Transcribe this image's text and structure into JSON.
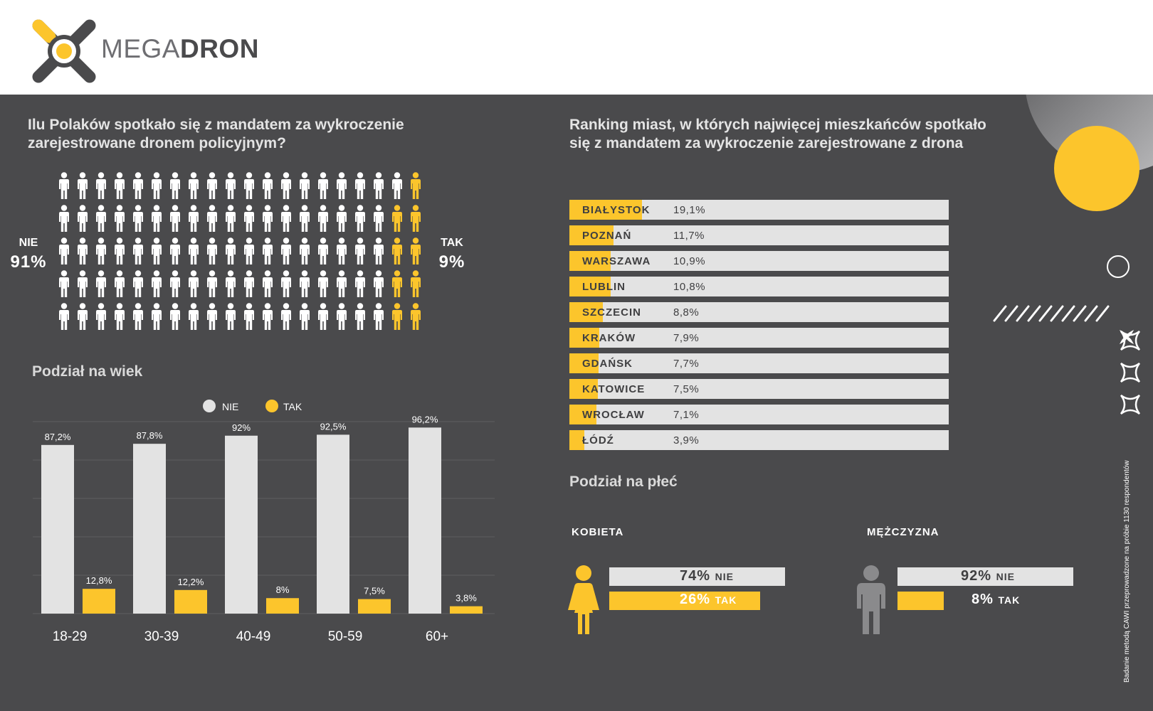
{
  "brand": {
    "name_light": "MEGA",
    "name_bold": "DRON"
  },
  "colors": {
    "background": "#4a4a4c",
    "accent": "#fcc52c",
    "neutral": "#e3e3e3"
  },
  "icons": [
    "megadron-logo-icon",
    "person-icon",
    "woman-icon",
    "man-icon",
    "circle-icon",
    "x-icon"
  ],
  "overall": {
    "title_line1": "Ilu Polaków spotkało się z mandatem za wykroczenie",
    "title_line2": "zarejestrowane dronem policyjnym?",
    "nie_label": "NIE",
    "nie_pct": "91%",
    "tak_label": "TAK",
    "tak_pct": "9%"
  },
  "ranking": {
    "title_line1": "Ranking miast, w których najwięcej mieszkańców spotkało",
    "title_line2": "się z mandatem za wykroczenie zarejestrowane z drona"
  },
  "age": {
    "title": "Podział na wiek",
    "legend_nie": "NIE",
    "legend_tak": "TAK"
  },
  "gender": {
    "title": "Podział na płeć",
    "kobieta": {
      "label": "KOBIETA",
      "nie_pct": "74%",
      "nie_label": "NIE",
      "tak_pct": "26%",
      "tak_label": "TAK"
    },
    "mezczyzna": {
      "label": "MĘŻCZYZNA",
      "nie_pct": "92%",
      "nie_label": "NIE",
      "tak_pct": "8%",
      "tak_label": "TAK"
    }
  },
  "footnote": "Badanie metodą CAWI przeprowadzone na próbie 1130 respondentów",
  "chart_data": [
    {
      "type": "pictogram",
      "title": "Ilu Polaków spotkało się z mandatem za wykroczenie zarejestrowane dronem policyjnym?",
      "categories": [
        "NIE",
        "TAK"
      ],
      "values": [
        91,
        9
      ]
    },
    {
      "type": "bar",
      "title": "Podział na wiek",
      "categories": [
        "18-29",
        "30-39",
        "40-49",
        "50-59",
        "60+"
      ],
      "series": [
        {
          "name": "NIE",
          "values": [
            87.2,
            87.8,
            92,
            92.5,
            96.2
          ],
          "labels": [
            "87,2%",
            "87,8%",
            "92%",
            "92,5%",
            "96,2%"
          ],
          "color": "#e3e3e3"
        },
        {
          "name": "TAK",
          "values": [
            12.8,
            12.2,
            8,
            7.5,
            3.8
          ],
          "labels": [
            "12,8%",
            "12,2%",
            "8%",
            "7,5%",
            "3,8%"
          ],
          "color": "#fcc52c"
        }
      ],
      "ylim": [
        0,
        100
      ],
      "grid": true,
      "legend": "top"
    },
    {
      "type": "bar",
      "orientation": "horizontal",
      "title": "Ranking miast, w których najwięcej mieszkańców spotkało się z mandatem za wykroczenie zarejestrowane z drona",
      "categories": [
        "BIAŁYSTOK",
        "POZNAŃ",
        "WARSZAWA",
        "LUBLIN",
        "SZCZECIN",
        "KRAKÓW",
        "GDAŃSK",
        "KATOWICE",
        "WROCŁAW",
        "ŁÓDŹ"
      ],
      "values": [
        19.1,
        11.7,
        10.9,
        10.8,
        8.8,
        7.9,
        7.7,
        7.5,
        7.1,
        3.9
      ],
      "labels": [
        "19,1%",
        "11,7%",
        "10,9%",
        "10,8%",
        "8,8%",
        "7,9%",
        "7,7%",
        "7,5%",
        "7,1%",
        "3,9%"
      ],
      "xlim": [
        0,
        100
      ]
    },
    {
      "type": "bar",
      "orientation": "horizontal",
      "title": "Podział na płeć",
      "categories": [
        "KOBIETA",
        "MĘŻCZYZNA"
      ],
      "series": [
        {
          "name": "NIE",
          "values": [
            74,
            92
          ]
        },
        {
          "name": "TAK",
          "values": [
            26,
            8
          ]
        }
      ]
    }
  ]
}
